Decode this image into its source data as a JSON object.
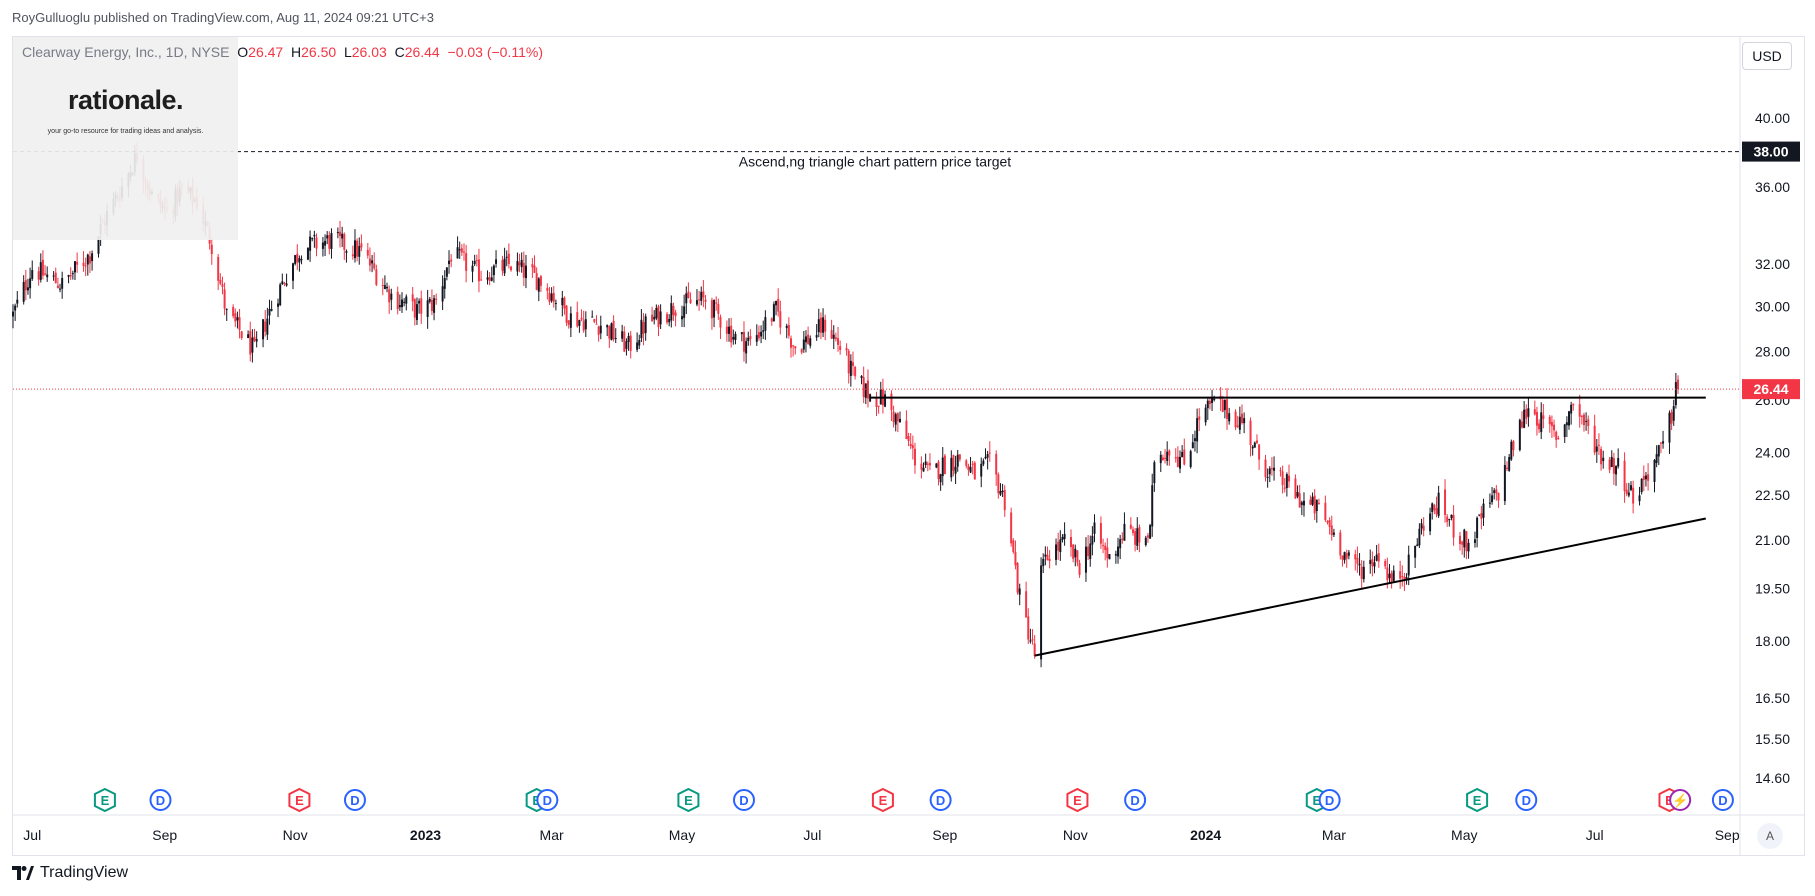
{
  "publisher": "RoyGulluoglu published on TradingView.com, Aug 11, 2024 09:21 UTC+3",
  "legend": {
    "title": "Clearway Energy, Inc., 1D, NYSE",
    "o_label": "O",
    "o": "26.47",
    "h_label": "H",
    "h": "26.50",
    "l_label": "L",
    "l": "26.03",
    "c_label": "C",
    "c": "26.44",
    "change": "−0.03 (−0.11%)"
  },
  "watermark": {
    "title": "rationale.",
    "subtitle": "your go-to resource for trading ideas and analysis."
  },
  "currency_button": "USD",
  "auto_button": "A",
  "footer_brand": "TradingView",
  "colors": {
    "up": "#131722",
    "down": "#f23645",
    "price_label": "#f23645",
    "target_label": "#131722",
    "earnings": "#089981",
    "earnings_red": "#f23645",
    "dividend": "#2962ff"
  },
  "chart_data": {
    "type": "candlestick",
    "price_scale": "log",
    "y_ticks": [
      "40.00",
      "36.00",
      "32.00",
      "30.00",
      "28.00",
      "26.00",
      "24.00",
      "22.50",
      "21.00",
      "19.50",
      "18.00",
      "16.50",
      "15.50",
      "14.60"
    ],
    "x_ticks": [
      {
        "label": "Jul",
        "date": "2022-07-01",
        "bold": false
      },
      {
        "label": "Sep",
        "date": "2022-09-01",
        "bold": false
      },
      {
        "label": "Nov",
        "date": "2022-11-01",
        "bold": false
      },
      {
        "label": "2023",
        "date": "2023-01-01",
        "bold": true
      },
      {
        "label": "Mar",
        "date": "2023-03-01",
        "bold": false
      },
      {
        "label": "May",
        "date": "2023-05-01",
        "bold": false
      },
      {
        "label": "Jul",
        "date": "2023-07-01",
        "bold": false
      },
      {
        "label": "Sep",
        "date": "2023-09-01",
        "bold": false
      },
      {
        "label": "Nov",
        "date": "2023-11-01",
        "bold": false
      },
      {
        "label": "2024",
        "date": "2024-01-01",
        "bold": true
      },
      {
        "label": "Mar",
        "date": "2024-03-01",
        "bold": false
      },
      {
        "label": "May",
        "date": "2024-05-01",
        "bold": false
      },
      {
        "label": "Jul",
        "date": "2024-07-01",
        "bold": false
      },
      {
        "label": "Sep",
        "date": "2024-09-01",
        "bold": false
      }
    ],
    "last_price": "26.44",
    "target_price": "38.00",
    "target_annotation": "Ascend,ng triangle chart pattern price target",
    "price_path": [
      [
        "2022-06-22",
        29.6
      ],
      [
        "2022-07-01",
        31.8
      ],
      [
        "2022-07-15",
        31.0
      ],
      [
        "2022-07-28",
        32.5
      ],
      [
        "2022-08-05",
        34.5
      ],
      [
        "2022-08-12",
        36.0
      ],
      [
        "2022-08-19",
        37.8
      ],
      [
        "2022-08-26",
        35.5
      ],
      [
        "2022-09-02",
        34.6
      ],
      [
        "2022-09-09",
        35.8
      ],
      [
        "2022-09-16",
        35.2
      ],
      [
        "2022-09-23",
        33.0
      ],
      [
        "2022-09-30",
        29.6
      ],
      [
        "2022-10-07",
        28.8
      ],
      [
        "2022-10-13",
        28.0
      ],
      [
        "2022-10-21",
        30.0
      ],
      [
        "2022-10-28",
        31.5
      ],
      [
        "2022-11-04",
        32.8
      ],
      [
        "2022-11-18",
        33.2
      ],
      [
        "2022-12-02",
        32.6
      ],
      [
        "2022-12-16",
        30.5
      ],
      [
        "2022-12-28",
        29.8
      ],
      [
        "2023-01-06",
        30.2
      ],
      [
        "2023-01-13",
        32.5
      ],
      [
        "2023-01-27",
        31.5
      ],
      [
        "2023-02-10",
        32.0
      ],
      [
        "2023-02-24",
        31.2
      ],
      [
        "2023-03-10",
        29.5
      ],
      [
        "2023-03-24",
        29.2
      ],
      [
        "2023-04-06",
        28.2
      ],
      [
        "2023-04-14",
        29.2
      ],
      [
        "2023-04-28",
        30.0
      ],
      [
        "2023-05-12",
        30.3
      ],
      [
        "2023-05-26",
        28.6
      ],
      [
        "2023-06-02",
        28.4
      ],
      [
        "2023-06-14",
        29.8
      ],
      [
        "2023-06-23",
        28.2
      ],
      [
        "2023-06-30",
        28.6
      ],
      [
        "2023-07-07",
        29.2
      ],
      [
        "2023-07-14",
        28.2
      ],
      [
        "2023-07-21",
        26.8
      ],
      [
        "2023-07-28",
        26.2
      ],
      [
        "2023-08-04",
        26.0
      ],
      [
        "2023-08-11",
        25.0
      ],
      [
        "2023-08-18",
        23.8
      ],
      [
        "2023-08-25",
        23.2
      ],
      [
        "2023-09-01",
        23.6
      ],
      [
        "2023-09-08",
        23.8
      ],
      [
        "2023-09-15",
        23.2
      ],
      [
        "2023-09-22",
        23.6
      ],
      [
        "2023-09-29",
        22.3
      ],
      [
        "2023-10-06",
        19.2
      ],
      [
        "2023-10-13",
        17.6
      ],
      [
        "2023-10-16",
        20.0
      ],
      [
        "2023-10-20",
        20.6
      ],
      [
        "2023-10-27",
        20.9
      ],
      [
        "2023-11-03",
        20.2
      ],
      [
        "2023-11-10",
        21.2
      ],
      [
        "2023-11-17",
        20.4
      ],
      [
        "2023-11-24",
        21.3
      ],
      [
        "2023-12-01",
        21.0
      ],
      [
        "2023-12-06",
        21.2
      ],
      [
        "2023-12-08",
        23.8
      ],
      [
        "2023-12-15",
        24.2
      ],
      [
        "2023-12-22",
        23.6
      ],
      [
        "2023-12-29",
        25.3
      ],
      [
        "2024-01-05",
        25.9
      ],
      [
        "2024-01-12",
        25.5
      ],
      [
        "2024-01-19",
        25.1
      ],
      [
        "2024-01-26",
        23.8
      ],
      [
        "2024-02-02",
        23.1
      ],
      [
        "2024-02-09",
        22.8
      ],
      [
        "2024-02-16",
        22.2
      ],
      [
        "2024-02-23",
        22.0
      ],
      [
        "2024-03-01",
        21.2
      ],
      [
        "2024-03-08",
        20.3
      ],
      [
        "2024-03-15",
        20.1
      ],
      [
        "2024-03-22",
        20.6
      ],
      [
        "2024-03-28",
        19.7
      ],
      [
        "2024-04-05",
        20.2
      ],
      [
        "2024-04-12",
        21.6
      ],
      [
        "2024-04-19",
        22.2
      ],
      [
        "2024-04-26",
        21.4
      ],
      [
        "2024-05-03",
        20.8
      ],
      [
        "2024-05-10",
        21.9
      ],
      [
        "2024-05-17",
        22.6
      ],
      [
        "2024-05-24",
        24.3
      ],
      [
        "2024-05-31",
        25.8
      ],
      [
        "2024-06-07",
        25.0
      ],
      [
        "2024-06-14",
        24.6
      ],
      [
        "2024-06-21",
        25.9
      ],
      [
        "2024-06-28",
        24.8
      ],
      [
        "2024-07-05",
        23.8
      ],
      [
        "2024-07-12",
        23.5
      ],
      [
        "2024-07-19",
        22.4
      ],
      [
        "2024-07-26",
        23.3
      ],
      [
        "2024-08-02",
        24.2
      ],
      [
        "2024-08-06",
        25.4
      ],
      [
        "2024-08-08",
        26.7
      ],
      [
        "2024-08-09",
        26.44
      ]
    ],
    "drawings": [
      {
        "name": "resistance-line",
        "points": [
          [
            "2023-07-28",
            26.1
          ],
          [
            "2024-08-22",
            26.1
          ]
        ]
      },
      {
        "name": "support-trendline",
        "points": [
          [
            "2023-10-13",
            17.6
          ],
          [
            "2024-08-22",
            21.7
          ]
        ]
      }
    ],
    "events": [
      {
        "type": "E",
        "date": "2022-08-04",
        "color": "green"
      },
      {
        "type": "D",
        "date": "2022-08-30",
        "color": "blue"
      },
      {
        "type": "E",
        "date": "2022-11-03",
        "color": "red"
      },
      {
        "type": "D",
        "date": "2022-11-29",
        "color": "blue"
      },
      {
        "type": "E",
        "date": "2023-02-22",
        "color": "green"
      },
      {
        "type": "D",
        "date": "2023-02-27",
        "color": "blue"
      },
      {
        "type": "E",
        "date": "2023-05-04",
        "color": "green"
      },
      {
        "type": "D",
        "date": "2023-05-30",
        "color": "blue"
      },
      {
        "type": "E",
        "date": "2023-08-03",
        "color": "red"
      },
      {
        "type": "D",
        "date": "2023-08-30",
        "color": "blue"
      },
      {
        "type": "E",
        "date": "2023-11-02",
        "color": "red"
      },
      {
        "type": "D",
        "date": "2023-11-29",
        "color": "blue"
      },
      {
        "type": "E",
        "date": "2024-02-22",
        "color": "green"
      },
      {
        "type": "D",
        "date": "2024-02-28",
        "color": "blue"
      },
      {
        "type": "E",
        "date": "2024-05-07",
        "color": "green"
      },
      {
        "type": "D",
        "date": "2024-05-30",
        "color": "blue"
      },
      {
        "type": "E",
        "date": "2024-08-05",
        "color": "red"
      },
      {
        "type": "S",
        "date": "2024-08-10",
        "color": "purple"
      },
      {
        "type": "D",
        "date": "2024-08-30",
        "color": "blue"
      }
    ]
  }
}
